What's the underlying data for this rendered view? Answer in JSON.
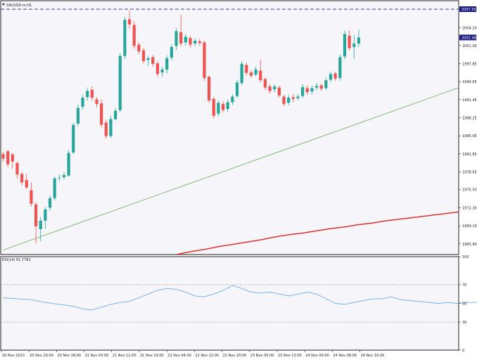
{
  "header": {
    "symbol": "XAUUSD.m,H1"
  },
  "rsi_panel": {
    "label": "RSI(14) 61.7781"
  },
  "colors": {
    "up": "#26a69a",
    "down": "#ef5350",
    "ma": "#e03030",
    "trendline": "#66aa55",
    "rsi": "#6aaee8",
    "hline": "#1a1a80",
    "price_badge": "#1a1a80",
    "current_badge": "#1a1a80"
  },
  "chart_data": [
    {
      "type": "candlestick",
      "title": "",
      "ylim": [
        1964,
        2009
      ],
      "y_ticks": [
        "2007.50",
        "2004.20",
        "2001.05",
        "1997.85",
        "1994.65",
        "1991.45",
        "1988.25",
        "1985.05",
        "1981.85",
        "1978.65",
        "1975.50",
        "1972.30",
        "1969.10",
        "1965.90"
      ],
      "x_ticks": [
        "20 Nov 2023",
        "20 Nov 10:00",
        "20 Nov 18:00",
        "21 Nov 03:00",
        "21 Nov 11:00",
        "21 Nov 19:00",
        "22 Nov 04:00",
        "22 Nov 12:00",
        "22 Nov 20:00",
        "23 Nov 05:00",
        "23 Nov 13:00",
        "24 Nov 00:00",
        "24 Nov 08:00",
        "24 Nov 16:00"
      ],
      "horizontal_line": {
        "value": 2007.5,
        "label": "2007.50"
      },
      "current_price": {
        "value": 2002.48,
        "label": "2002.48"
      },
      "candles": [
        [
          1981.8,
          1982.2,
          1980.5,
          1981.0
        ],
        [
          1982.3,
          1982.6,
          1979.5,
          1980.0
        ],
        [
          1981.8,
          1981.9,
          1979.3,
          1980.5
        ],
        [
          1980.2,
          1980.5,
          1977.5,
          1978.2
        ],
        [
          1978.3,
          1978.6,
          1976.2,
          1976.8
        ],
        [
          1977.2,
          1978.3,
          1975.6,
          1975.9
        ],
        [
          1975.4,
          1976.8,
          1972.5,
          1973.0
        ],
        [
          1972.9,
          1973.3,
          1966.0,
          1969.0
        ],
        [
          1968.5,
          1970.6,
          1966.3,
          1970.0
        ],
        [
          1970.0,
          1972.4,
          1968.5,
          1972.0
        ],
        [
          1972.3,
          1974.5,
          1971.8,
          1974.0
        ],
        [
          1974.0,
          1977.8,
          1973.6,
          1977.5
        ],
        [
          1977.6,
          1978.2,
          1977.0,
          1977.6
        ],
        [
          1977.7,
          1978.6,
          1977.3,
          1978.1
        ],
        [
          1978.0,
          1982.5,
          1977.8,
          1982.0
        ],
        [
          1982.1,
          1987.3,
          1981.8,
          1987.0
        ],
        [
          1987.2,
          1990.6,
          1986.8,
          1990.0
        ],
        [
          1990.2,
          1992.3,
          1989.7,
          1991.8
        ],
        [
          1991.9,
          1993.6,
          1991.3,
          1993.0
        ],
        [
          1993.2,
          1993.8,
          1991.2,
          1991.8
        ],
        [
          1991.5,
          1991.9,
          1990.1,
          1990.7
        ],
        [
          1990.8,
          1991.5,
          1986.5,
          1987.0
        ],
        [
          1987.4,
          1987.9,
          1984.5,
          1985.0
        ],
        [
          1985.0,
          1988.6,
          1984.7,
          1988.0
        ],
        [
          1988.0,
          1990.0,
          1987.8,
          1989.5
        ],
        [
          1989.6,
          1999.7,
          1989.2,
          1999.2
        ],
        [
          1999.2,
          2006.1,
          1998.7,
          2005.6
        ],
        [
          2005.7,
          2007.3,
          2004.0,
          2004.8
        ],
        [
          2004.7,
          2005.4,
          2000.5,
          2001.0
        ],
        [
          2001.2,
          2001.6,
          1999.5,
          2000.0
        ],
        [
          2000.2,
          2000.6,
          1997.9,
          1998.3
        ],
        [
          1998.5,
          1999.2,
          1997.5,
          1998.8
        ],
        [
          1999.0,
          1999.4,
          1997.3,
          1997.8
        ],
        [
          1997.9,
          1998.3,
          1995.5,
          1996.0
        ],
        [
          1996.3,
          1997.3,
          1995.5,
          1996.8
        ],
        [
          1996.8,
          1999.3,
          1996.1,
          1998.8
        ],
        [
          1998.9,
          2001.3,
          1998.4,
          2000.8
        ],
        [
          2001.0,
          2004.1,
          2000.3,
          2003.6
        ],
        [
          2003.4,
          2006.5,
          2000.9,
          2001.4
        ],
        [
          2001.6,
          2003.1,
          2001.0,
          2002.6
        ],
        [
          2002.4,
          2002.8,
          2000.7,
          2001.2
        ],
        [
          2001.4,
          2002.4,
          2000.9,
          2001.9
        ],
        [
          2001.8,
          2002.2,
          2001.0,
          2001.5
        ],
        [
          2001.6,
          2001.9,
          1994.8,
          1995.3
        ],
        [
          1995.5,
          1995.8,
          1990.9,
          1991.3
        ],
        [
          1991.6,
          1991.9,
          1988.1,
          1988.6
        ],
        [
          1989.0,
          1991.3,
          1988.5,
          1990.9
        ],
        [
          1990.7,
          1991.2,
          1989.2,
          1989.6
        ],
        [
          1989.8,
          1991.5,
          1989.3,
          1991.0
        ],
        [
          1991.0,
          1992.4,
          1990.5,
          1992.0
        ],
        [
          1992.1,
          1995.0,
          1991.8,
          1994.5
        ],
        [
          1994.4,
          1998.3,
          1994.0,
          1997.8
        ],
        [
          1997.6,
          1998.0,
          1995.8,
          1996.2
        ],
        [
          1996.3,
          1996.7,
          1995.3,
          1995.7
        ],
        [
          1995.9,
          1997.3,
          1995.6,
          1996.8
        ],
        [
          1996.6,
          1998.6,
          1994.5,
          1994.9
        ],
        [
          1995.1,
          1995.4,
          1993.2,
          1993.6
        ],
        [
          1993.8,
          1994.2,
          1992.6,
          1993.0
        ],
        [
          1993.3,
          1994.2,
          1992.8,
          1993.8
        ],
        [
          1993.6,
          1994.0,
          1991.8,
          1992.2
        ],
        [
          1992.0,
          1992.3,
          1990.3,
          1990.7
        ],
        [
          1990.9,
          1992.3,
          1990.5,
          1991.8
        ],
        [
          1991.9,
          1992.5,
          1991.0,
          1991.6
        ],
        [
          1991.7,
          1992.4,
          1991.4,
          1992.0
        ],
        [
          1992.1,
          1994.2,
          1991.7,
          1993.7
        ],
        [
          1993.5,
          1994.0,
          1992.3,
          1992.8
        ],
        [
          1992.9,
          1994.0,
          1992.4,
          1993.5
        ],
        [
          1993.6,
          1994.4,
          1993.1,
          1993.9
        ],
        [
          1994.0,
          1994.3,
          1993.0,
          1993.4
        ],
        [
          1993.5,
          1995.4,
          1993.2,
          1994.9
        ],
        [
          1995.0,
          1996.4,
          1994.6,
          1996.0
        ],
        [
          1996.1,
          1996.4,
          1994.8,
          1995.2
        ],
        [
          1995.3,
          1999.5,
          1994.8,
          1999.0
        ],
        [
          1999.1,
          2003.7,
          1998.6,
          2003.1
        ],
        [
          2002.8,
          2003.7,
          2000.2,
          2000.6
        ],
        [
          2000.8,
          2002.9,
          1998.6,
          2001.4
        ],
        [
          2001.4,
          2003.9,
          2000.8,
          2002.48
        ]
      ],
      "ma": {
        "points": [
          [
            37,
            1964.0
          ],
          [
            40,
            1964.5
          ],
          [
            43,
            1964.9
          ],
          [
            46,
            1965.4
          ],
          [
            49,
            1965.8
          ],
          [
            52,
            1966.2
          ],
          [
            55,
            1966.6
          ],
          [
            58,
            1967.1
          ],
          [
            61,
            1967.5
          ],
          [
            64,
            1967.8
          ],
          [
            67,
            1968.2
          ],
          [
            70,
            1968.6
          ],
          [
            73,
            1968.9
          ],
          [
            76,
            1969.3
          ],
          [
            79,
            1969.6
          ],
          [
            82,
            1970.0
          ],
          [
            85,
            1970.3
          ],
          [
            88,
            1970.6
          ],
          [
            91,
            1970.9
          ],
          [
            94,
            1971.2
          ],
          [
            97,
            1971.5
          ],
          [
            100,
            1971.8
          ],
          [
            103,
            1972.1
          ],
          [
            106,
            1972.4
          ],
          [
            109,
            1972.7
          ],
          [
            112,
            1973.0
          ],
          [
            115,
            1973.3
          ],
          [
            118,
            1973.7
          ],
          [
            121,
            1974.0
          ],
          [
            124,
            1974.4
          ]
        ]
      },
      "trendline": {
        "from": [
          0,
          1964.8
        ],
        "to": [
          124,
          2001.6
        ]
      }
    },
    {
      "type": "line",
      "title": "",
      "series": [
        {
          "values": [
            [
              0,
              56
            ],
            [
              3,
              55
            ],
            [
              6,
              54
            ],
            [
              9,
              51
            ],
            [
              12,
              49
            ],
            [
              15,
              47
            ],
            [
              17,
              44
            ],
            [
              19,
              43
            ],
            [
              21,
              46
            ],
            [
              23,
              49
            ],
            [
              25,
              51
            ],
            [
              27,
              52
            ],
            [
              29,
              56
            ],
            [
              31,
              60
            ],
            [
              33,
              64
            ],
            [
              35,
              66
            ],
            [
              37,
              65
            ],
            [
              39,
              62
            ],
            [
              41,
              58
            ],
            [
              43,
              57
            ],
            [
              45,
              60
            ],
            [
              47,
              64
            ],
            [
              49,
              69
            ],
            [
              51,
              66
            ],
            [
              53,
              62
            ],
            [
              55,
              61
            ],
            [
              57,
              62
            ],
            [
              59,
              60
            ],
            [
              61,
              58
            ],
            [
              63,
              60
            ],
            [
              65,
              62
            ],
            [
              67,
              60
            ],
            [
              69,
              55
            ],
            [
              71,
              50
            ],
            [
              73,
              49
            ],
            [
              75,
              51
            ],
            [
              77,
              53
            ],
            [
              79,
              55
            ],
            [
              81,
              55
            ],
            [
              83,
              57
            ],
            [
              85,
              54
            ],
            [
              87,
              53
            ],
            [
              89,
              52
            ],
            [
              91,
              51
            ],
            [
              93,
              50
            ],
            [
              95,
              51
            ],
            [
              97,
              50
            ],
            [
              99,
              51
            ],
            [
              101,
              51
            ],
            [
              103,
              52
            ],
            [
              105,
              52
            ],
            [
              107,
              51
            ],
            [
              109,
              51
            ],
            [
              111,
              53
            ],
            [
              113,
              53
            ],
            [
              115,
              53
            ],
            [
              117,
              61
            ],
            [
              118,
              64
            ],
            [
              120,
              57
            ],
            [
              122,
              60
            ],
            [
              124,
              62
            ]
          ]
        }
      ],
      "ylim": [
        0,
        100
      ],
      "y_ticks": [
        "100",
        "70",
        "50",
        "30",
        "0"
      ],
      "levels": [
        70,
        30
      ]
    }
  ]
}
